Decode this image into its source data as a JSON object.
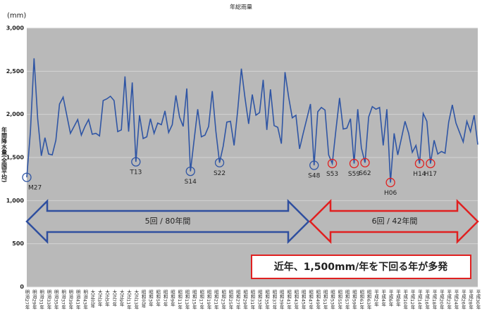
{
  "chart_data": {
    "type": "line",
    "title": "年総雨量",
    "y_unit": "(mm)",
    "y_label": "年間降水量(全国平均)",
    "color": "#2f55a4",
    "grid": true,
    "ylim": [
      0,
      3000
    ],
    "yticks": [
      0,
      500,
      {
        "value": 1000,
        "label": "1,000"
      },
      {
        "value": 1500,
        "label": "1,500"
      },
      {
        "value": 2000,
        "label": "2,000"
      },
      {
        "value": 2500,
        "label": "2,500"
      },
      {
        "value": 3000,
        "label": "3,000"
      }
    ],
    "categories": [
      "明治27年",
      null,
      "明治29年",
      null,
      "明治31年",
      null,
      "明治33年",
      null,
      "明治35年",
      null,
      "明治37年",
      null,
      "明治39年",
      null,
      "明治41年",
      null,
      "明治43年",
      null,
      "大正元年",
      null,
      "大正3年",
      null,
      "大正5年",
      null,
      "大正7年",
      null,
      "大正9年",
      null,
      "大正11年",
      null,
      "大正13年",
      null,
      "昭和元年",
      null,
      "昭和3年",
      null,
      "昭和5年",
      null,
      "昭和7年",
      null,
      "昭和9年",
      null,
      "昭和11年",
      null,
      "昭和13年",
      null,
      "昭和15年",
      null,
      "昭和17年",
      null,
      "昭和19年",
      null,
      "昭和21年",
      null,
      "昭和23年",
      null,
      "昭和25年",
      null,
      "昭和27年",
      null,
      "昭和29年",
      null,
      "昭和31年",
      null,
      "昭和33年",
      null,
      "昭和35年",
      null,
      "昭和37年",
      null,
      "昭和39年",
      null,
      "昭和41年",
      null,
      "昭和43年",
      null,
      "昭和45年",
      null,
      "昭和47年",
      null,
      "昭和49年",
      null,
      "昭和51年",
      null,
      "昭和53年",
      null,
      "昭和55年",
      null,
      "昭和57年",
      null,
      "昭和59年",
      null,
      "昭和61年",
      null,
      "昭和63年",
      null,
      "平成2年",
      null,
      "平成4年",
      null,
      "平成6年",
      null,
      "平成8年",
      null,
      "平成10年",
      null,
      "平成12年",
      null,
      "平成14年",
      null,
      "平成16年",
      null,
      "平成18年",
      null,
      "平成20年",
      null,
      "平成22年",
      null,
      "平成24年",
      null,
      "平成26年",
      null,
      "平成28年",
      null,
      "平成30年"
    ],
    "values": [
      1270,
      1800,
      2650,
      1950,
      1520,
      1730,
      1540,
      1530,
      1700,
      2120,
      2200,
      1990,
      1780,
      1860,
      1940,
      1760,
      1860,
      1940,
      1770,
      1780,
      1750,
      2160,
      2180,
      2210,
      2160,
      1800,
      1820,
      2440,
      1800,
      2370,
      1450,
      1990,
      1720,
      1740,
      1950,
      1780,
      1900,
      1880,
      2040,
      1790,
      1880,
      2220,
      1970,
      1860,
      2300,
      1340,
      1700,
      2060,
      1740,
      1760,
      1860,
      2270,
      1800,
      1440,
      1630,
      1910,
      1920,
      1640,
      2050,
      2530,
      2190,
      1890,
      2230,
      1990,
      2020,
      2400,
      1820,
      2290,
      1870,
      1850,
      1660,
      2490,
      2200,
      1960,
      1990,
      1600,
      1780,
      1950,
      2120,
      1410,
      2030,
      2080,
      2050,
      1530,
      1430,
      1820,
      2190,
      1830,
      1840,
      1950,
      1430,
      2060,
      1610,
      1440,
      1970,
      2090,
      2060,
      2080,
      1640,
      2060,
      1210,
      1780,
      1530,
      1720,
      1920,
      1780,
      1560,
      1640,
      1430,
      2010,
      1920,
      1430,
      1700,
      1540,
      1570,
      1550,
      1910,
      2110,
      1900,
      1790,
      1680,
      1920,
      1800,
      1990,
      1650
    ],
    "point_labels": [
      "M27",
      null,
      null,
      null,
      null,
      null,
      null,
      null,
      null,
      null,
      null,
      null,
      null,
      null,
      null,
      null,
      null,
      null,
      null,
      null,
      null,
      null,
      null,
      null,
      null,
      null,
      null,
      null,
      null,
      null,
      "T13",
      null,
      null,
      null,
      null,
      null,
      null,
      null,
      null,
      null,
      null,
      null,
      null,
      null,
      null,
      "S14",
      null,
      null,
      null,
      null,
      null,
      null,
      null,
      "S22",
      null,
      null,
      null,
      null,
      null,
      null,
      null,
      null,
      null,
      null,
      null,
      null,
      null,
      null,
      null,
      null,
      null,
      null,
      null,
      null,
      null,
      null,
      null,
      null,
      null,
      "S48",
      null,
      null,
      null,
      null,
      "S53",
      null,
      null,
      null,
      null,
      null,
      "S59",
      null,
      null,
      "S62",
      null,
      null,
      null,
      null,
      null,
      null,
      "H06",
      null,
      null,
      null,
      null,
      null,
      null,
      null,
      "H14",
      null,
      null,
      "H17",
      null,
      null,
      null,
      null,
      null,
      null,
      null,
      null,
      null,
      null,
      null,
      null,
      null
    ],
    "point_marker_colors": [
      "#2f55a4",
      null,
      null,
      null,
      null,
      null,
      null,
      null,
      null,
      null,
      null,
      null,
      null,
      null,
      null,
      null,
      null,
      null,
      null,
      null,
      null,
      null,
      null,
      null,
      null,
      null,
      null,
      null,
      null,
      null,
      "#2f55a4",
      null,
      null,
      null,
      null,
      null,
      null,
      null,
      null,
      null,
      null,
      null,
      null,
      null,
      null,
      "#2f55a4",
      null,
      null,
      null,
      null,
      null,
      null,
      null,
      "#2f55a4",
      null,
      null,
      null,
      null,
      null,
      null,
      null,
      null,
      null,
      null,
      null,
      null,
      null,
      null,
      null,
      null,
      null,
      null,
      null,
      null,
      null,
      null,
      null,
      null,
      null,
      "#2f55a4",
      null,
      null,
      null,
      null,
      "#e02020",
      null,
      null,
      null,
      null,
      null,
      "#e02020",
      null,
      null,
      "#e02020",
      null,
      null,
      null,
      null,
      null,
      null,
      "#e02020",
      null,
      null,
      null,
      null,
      null,
      null,
      null,
      "#e02020",
      null,
      null,
      "#e02020",
      null,
      null,
      null,
      null,
      null,
      null,
      null,
      null,
      null,
      null,
      null,
      null,
      null
    ],
    "arrow_labels": [
      "5回 / 80年間",
      "6回 / 42年間"
    ],
    "note": "近年、1,500mm/年を下回る年が多発"
  }
}
